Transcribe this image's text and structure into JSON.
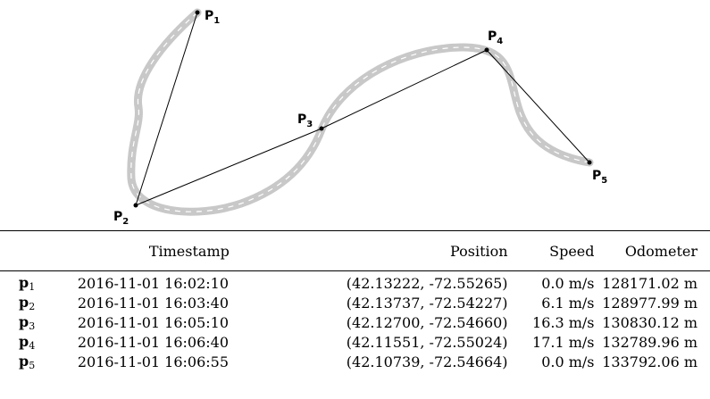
{
  "points": [
    {
      "id": "p1",
      "label": "P",
      "sub": "1"
    },
    {
      "id": "p2",
      "label": "P",
      "sub": "2"
    },
    {
      "id": "p3",
      "label": "P",
      "sub": "3"
    },
    {
      "id": "p4",
      "label": "P",
      "sub": "4"
    },
    {
      "id": "p5",
      "label": "P",
      "sub": "5"
    }
  ],
  "table": {
    "headers": [
      "",
      "Timestamp",
      "Position",
      "Speed",
      "Odometer"
    ],
    "rows": [
      {
        "label": "p",
        "sub": "1",
        "timestamp": "2016-11-01 16:02:10",
        "position": "(42.13222, -72.55265)",
        "speed": "0.0 m/s",
        "odometer": "128171.02 m"
      },
      {
        "label": "p",
        "sub": "2",
        "timestamp": "2016-11-01 16:03:40",
        "position": "(42.13737, -72.54227)",
        "speed": "6.1 m/s",
        "odometer": "128977.99 m"
      },
      {
        "label": "p",
        "sub": "3",
        "timestamp": "2016-11-01 16:05:10",
        "position": "(42.12700, -72.54660)",
        "speed": "16.3 m/s",
        "odometer": "130830.12 m"
      },
      {
        "label": "p",
        "sub": "4",
        "timestamp": "2016-11-01 16:06:40",
        "position": "(42.11551, -72.55024)",
        "speed": "17.1 m/s",
        "odometer": "132789.96 m"
      },
      {
        "label": "p",
        "sub": "5",
        "timestamp": "2016-11-01 16:06:55",
        "position": "(42.10739, -72.54664)",
        "speed": "0.0 m/s",
        "odometer": "133792.06 m"
      }
    ]
  },
  "colors": {
    "road": "#c8c8c8",
    "road_dash": "#ffffff",
    "line": "#000000"
  }
}
